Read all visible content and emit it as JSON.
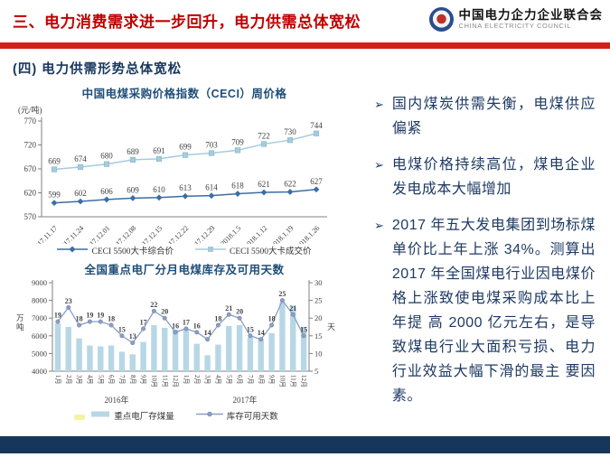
{
  "header": {
    "title": "三、电力消费需求进一步回升，电力供需总体宽松",
    "logo": {
      "org_cn": "中国电力企力企业联合会",
      "org_en": "CHINA ELECTRICITY COUNCIL"
    }
  },
  "section_heading": "(四)  电力供需形势总体宽松",
  "colors": {
    "title_red": "#c00000",
    "divider_red": "#d2201a",
    "navy_text": "#17365d",
    "chart_title_blue": "#1f4e79",
    "dark_series_blue": "#3a6ea5",
    "light_series_blue": "#a5cbdd",
    "bar_blue": "#b7d7e5",
    "days_line": "#8d9ec5",
    "day_label_blue": "#2e5a8c",
    "bottom_bar_navy": "#16365c"
  },
  "chart_data": [
    {
      "type": "line",
      "title": "中国电煤采购价格指数（CECI）周价格",
      "unit_label": "(元/吨)",
      "x": [
        "2017.11.17",
        "2017.11.24",
        "2017.12.01",
        "2017.12.08",
        "2017.12.15",
        "2017.12.22",
        "2017.12.29",
        "2018.1.5",
        "2018.1.12",
        "2018.1.19",
        "2018.1.26"
      ],
      "series": [
        {
          "name": "CECI 5500大卡综合价",
          "color": "#3a6ea5",
          "marker": "diamond",
          "values": [
            599,
            602,
            606,
            609,
            610,
            613,
            614,
            618,
            621,
            622,
            627
          ]
        },
        {
          "name": "CECI 5500大卡成交价",
          "color": "#a5cbdd",
          "marker": "square",
          "values": [
            669,
            674,
            680,
            689,
            691,
            699,
            703,
            709,
            722,
            730,
            744
          ]
        }
      ],
      "ylim": [
        570,
        770
      ],
      "yticks": [
        770,
        720,
        670,
        620,
        570
      ],
      "grid": false,
      "legend_position": "bottom"
    },
    {
      "type": "bar+line",
      "title": "全国重点电厂分月电煤库存及可用天数",
      "categories": [
        "1月",
        "2月",
        "3月",
        "4月",
        "5月",
        "6月",
        "7月",
        "8月",
        "9月",
        "10月",
        "11月",
        "12月",
        "1月",
        "2月",
        "3月",
        "4月",
        "5月",
        "6月",
        "7月",
        "8月",
        "9月",
        "10月",
        "11月",
        "12月"
      ],
      "group_labels": [
        "2016年",
        "2017年"
      ],
      "bar_series": {
        "name": "重点电厂存煤量",
        "color": "#b7d7e5",
        "axis": "left",
        "values": [
          6700,
          6500,
          5850,
          5450,
          5400,
          5450,
          5100,
          4950,
          5650,
          6600,
          6450,
          6350,
          6300,
          5550,
          4900,
          5500,
          6550,
          6600,
          5900,
          5800,
          6150,
          7900,
          7700,
          6500
        ]
      },
      "line_series": {
        "name": "库存可用天数",
        "color": "#8d9ec5",
        "axis": "right",
        "values": [
          19,
          23,
          18,
          19,
          19,
          18,
          15,
          13,
          17,
          22,
          20,
          16,
          17,
          16,
          14,
          18,
          21,
          20,
          15,
          14,
          18,
          25,
          21,
          15
        ]
      },
      "left_axis": {
        "label": "万吨",
        "ticks": [
          9000,
          8000,
          7000,
          6000,
          5000,
          4000
        ],
        "lim": [
          4000,
          9000
        ]
      },
      "right_axis": {
        "label": "天",
        "ticks": [
          30,
          25,
          20,
          15,
          10,
          5
        ],
        "lim": [
          5,
          30
        ]
      },
      "grid": false,
      "legend_position": "bottom"
    }
  ],
  "bullets": [
    {
      "marker": "➢",
      "text": "国内煤炭供需失衡，电煤供应偏紧"
    },
    {
      "marker": "➢",
      "text": "电煤价格持续高位，煤电企业发电成本大幅增加"
    },
    {
      "marker": "➢",
      "text": "2017 年五大发电集团到场标煤单价比上年上涨 34%。测算出2017 年全国煤电行业因电煤价格上涨致使电煤采购成本比上年提 高 2000 亿元左右，是导致煤电行业大面积亏损、电力行业效益大幅下滑的最主 要因素。"
    }
  ]
}
